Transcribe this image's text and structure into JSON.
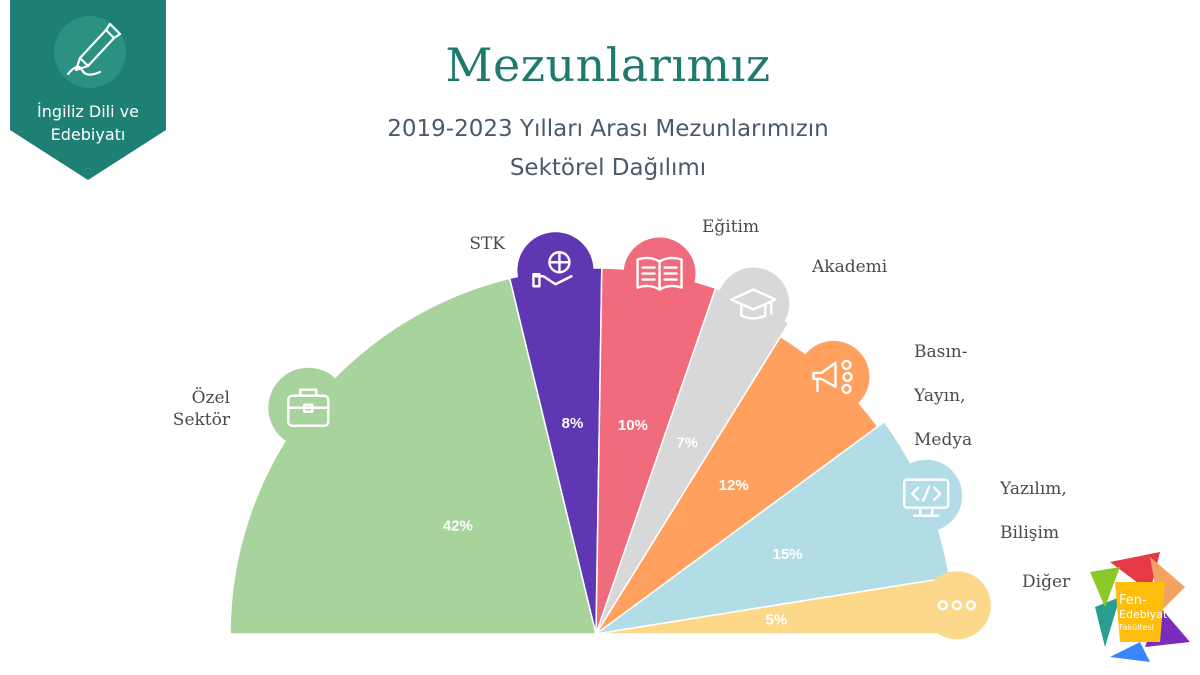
{
  "badge": {
    "line1": "İngiliz Dili ve",
    "line2": "Edebiyatı",
    "icon": "pen-nib-icon",
    "color": "#1e7f74"
  },
  "header": {
    "title": "Mezunlarımız",
    "subtitle_line1": "2019-2023 Yılları Arası Mezunlarımızın",
    "subtitle_line2": "Sektörel Dağılımı"
  },
  "faculty_logo": {
    "text_fen": "Fen-",
    "text_edebiyat": "Edebiyat",
    "text_fakultesi": "Fakültesi"
  },
  "chart_data": {
    "type": "pie",
    "variant": "semicircle-rose",
    "title": "2019-2023 Yılları Arası Mezunlarımızın Sektörel Dağılımı",
    "categories": [
      "Özel Sektör",
      "STK",
      "Eğitim",
      "Akademi",
      "Basın-Yayın, Medya",
      "Yazılım, Bilişim",
      "Diğer"
    ],
    "values": [
      42,
      8,
      10,
      7,
      12,
      15,
      5
    ],
    "value_labels": [
      "42%",
      "8%",
      "10%",
      "7%",
      "12%",
      "15%",
      "5%"
    ],
    "colors": [
      "#a8d39c",
      "#5f37b2",
      "#f06c7c",
      "#d8d8d8",
      "#ffa05f",
      "#b3dde6",
      "#fcd98a"
    ],
    "icons": [
      "briefcase-icon",
      "charity-hand-icon",
      "book-icon",
      "graduation-cap-icon",
      "megaphone-icon",
      "code-screen-icon",
      "more-dots-icon"
    ],
    "unit": "%"
  }
}
